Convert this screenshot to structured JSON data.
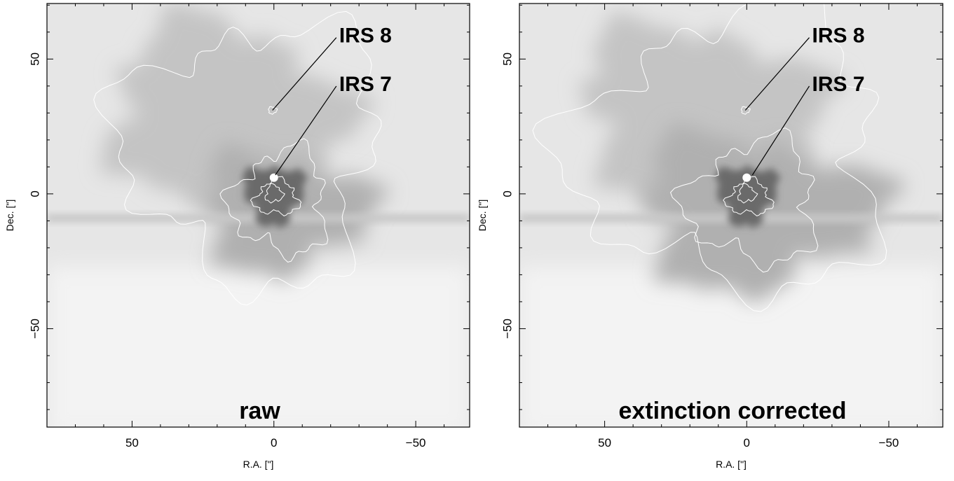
{
  "chart_data": [
    {
      "type": "image",
      "label": "raw",
      "xlabel": "R.A. [\"]",
      "ylabel": "Dec. [\"]",
      "xlim": [
        80,
        -69
      ],
      "ylim": [
        -86.5,
        70.6
      ],
      "xticks": [
        50,
        0,
        {
          "value": -50,
          "label": "−50"
        }
      ],
      "yticks": [
        {
          "value": -50,
          "label": "−50"
        },
        0,
        50
      ],
      "xticks_minor": [
        70,
        60,
        40,
        30,
        20,
        10,
        -10,
        -20,
        -30,
        -40,
        -60
      ],
      "yticks_minor": [
        -80,
        -70,
        -60,
        -40,
        -30,
        -20,
        -10,
        10,
        20,
        30,
        40,
        60,
        70
      ],
      "annotations": [
        {
          "text": "IRS 8",
          "x": 0.5,
          "y": 31,
          "xtext": -23,
          "ytext": 59
        },
        {
          "text": "IRS 7",
          "x": -0.5,
          "y": 7,
          "xtext": -23,
          "ytext": 41
        }
      ]
    },
    {
      "type": "image",
      "label": "extinction corrected",
      "xlabel": "R.A. [\"]",
      "ylabel": "Dec. [\"]",
      "xlim": [
        80,
        -69
      ],
      "ylim": [
        -86.5,
        70.6
      ],
      "xticks": [
        50,
        0,
        {
          "value": -50,
          "label": "−50"
        }
      ],
      "yticks": [
        {
          "value": -50,
          "label": "−50"
        },
        0,
        50
      ],
      "xticks_minor": [
        70,
        60,
        40,
        30,
        20,
        10,
        -10,
        -20,
        -30,
        -40,
        -60
      ],
      "yticks_minor": [
        -80,
        -70,
        -60,
        -40,
        -30,
        -20,
        -10,
        10,
        20,
        30,
        40,
        60,
        70
      ],
      "annotations": [
        {
          "text": "IRS 8",
          "x": 0.5,
          "y": 31,
          "xtext": -23,
          "ytext": 59
        },
        {
          "text": "IRS 7",
          "x": -2,
          "y": 7,
          "xtext": -23,
          "ytext": 41
        }
      ]
    }
  ]
}
